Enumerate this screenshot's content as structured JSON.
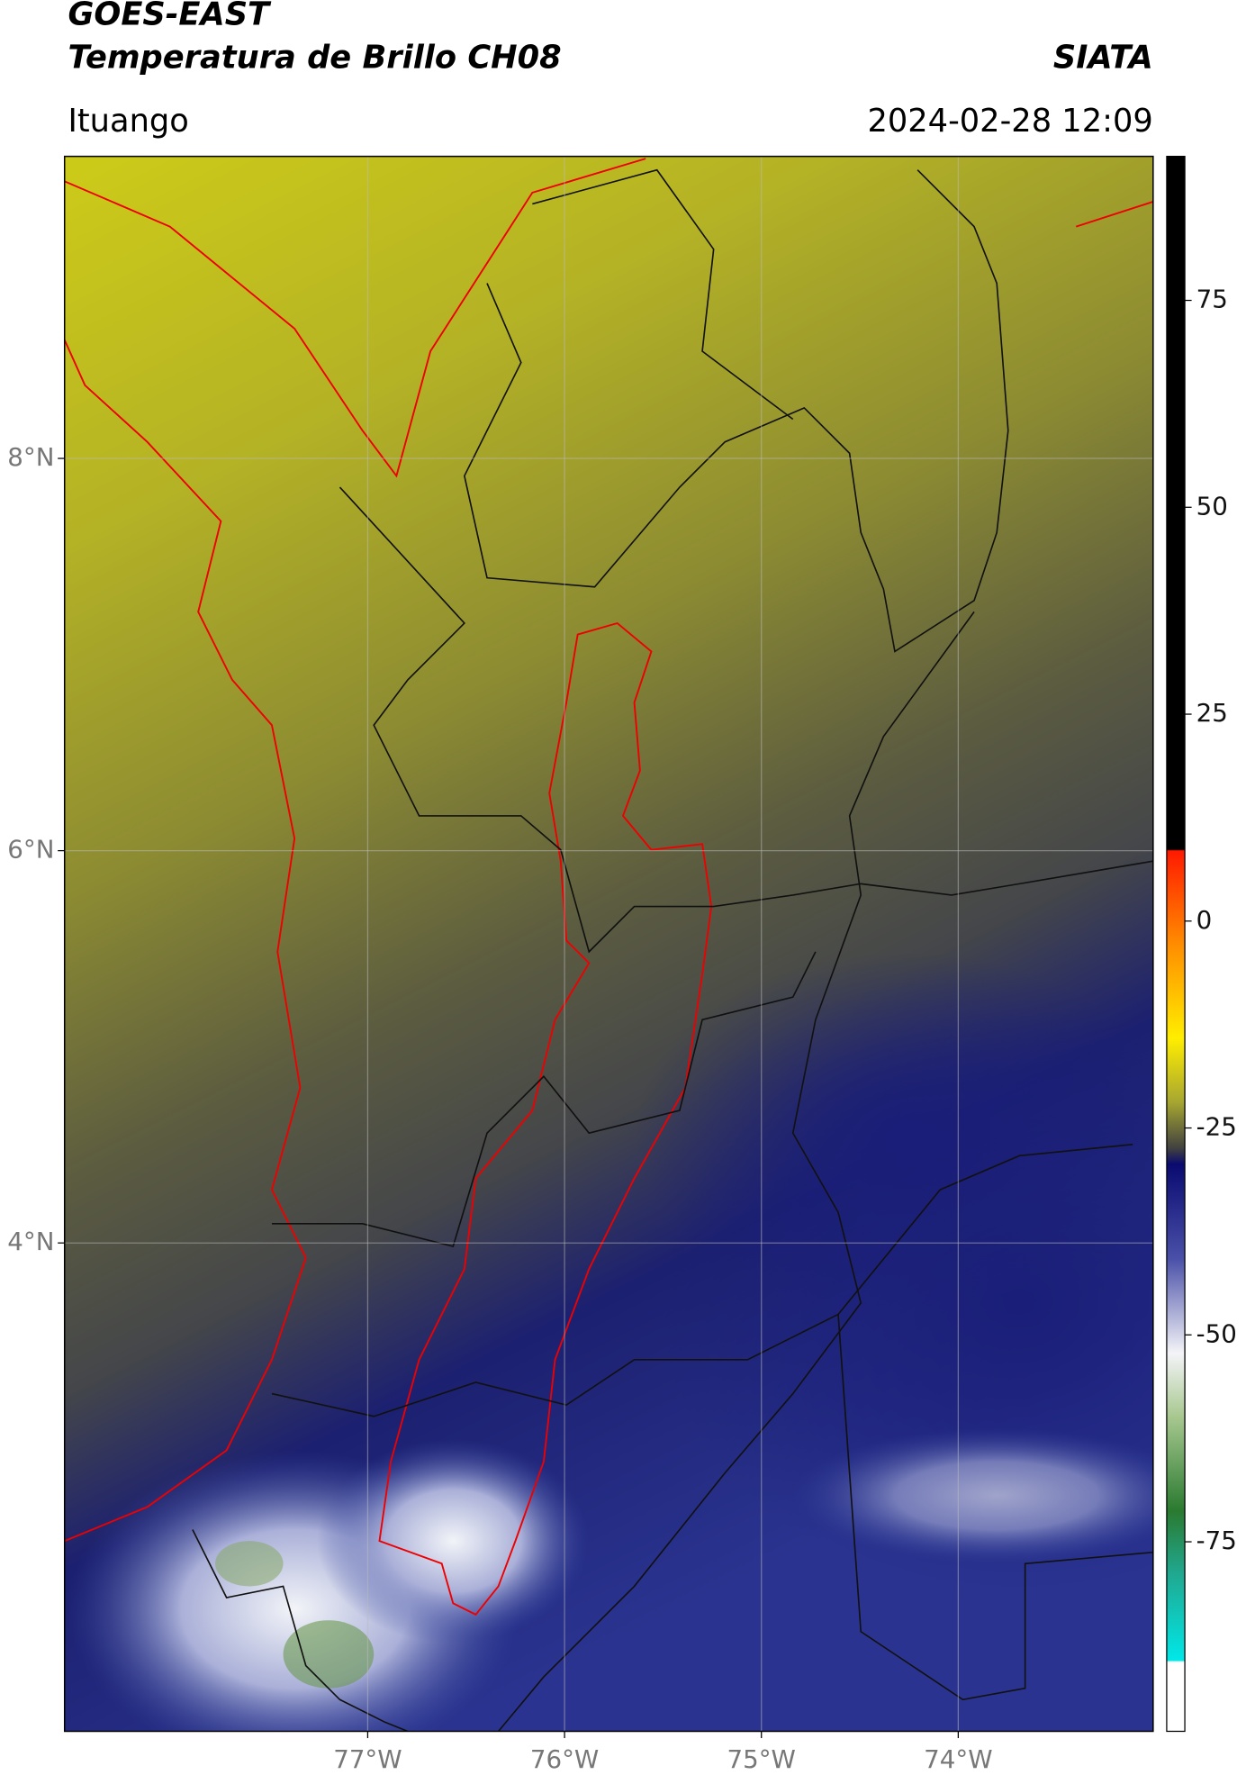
{
  "chart_data": {
    "type": "map",
    "title": "GOES-EAST",
    "subtitle": "Temperatura de Brillo CH08",
    "source": "SIATA",
    "location": "Ituango",
    "datetime": "2024-02-28 12:09",
    "xlim": [
      -78.54,
      -73.01
    ],
    "ylim": [
      1.51,
      9.54
    ],
    "xticks": [
      {
        "value": -77,
        "label": "77°W"
      },
      {
        "value": -76,
        "label": "76°W"
      },
      {
        "value": -75,
        "label": "75°W"
      },
      {
        "value": -74,
        "label": "74°W"
      }
    ],
    "yticks": [
      {
        "value": 8,
        "label": "8°N"
      },
      {
        "value": 6,
        "label": "6°N"
      },
      {
        "value": 4,
        "label": "4°N"
      }
    ],
    "grid": true,
    "colorbar": {
      "lim": [
        -97.9,
        92.4
      ],
      "ticks": [
        75,
        50,
        25,
        0,
        -25,
        -50,
        -75
      ]
    }
  }
}
